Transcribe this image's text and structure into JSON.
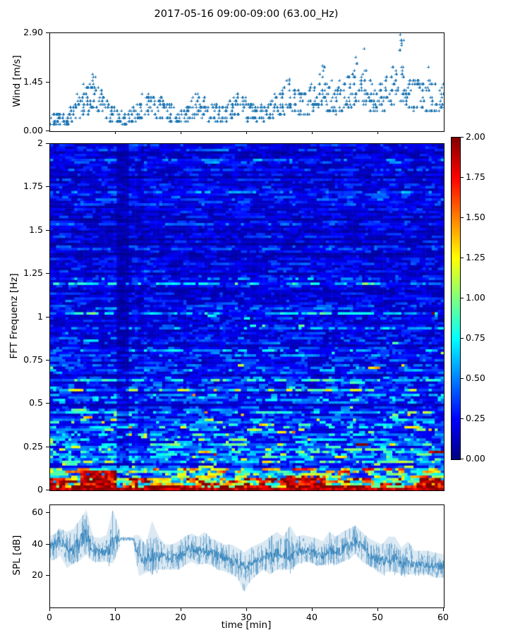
{
  "figure": {
    "title": "2017-05-16 09:00-09:00 (63.00_Hz)",
    "background": "#ffffff",
    "accent_blue": "#1f77b4"
  },
  "chart_data": [
    {
      "type": "scatter",
      "name": "wind-speed",
      "ylabel": "Wind [m/s]",
      "marker": "+",
      "color": "#1f77b4",
      "xlim": [
        0,
        60
      ],
      "ylim": [
        0,
        2.9
      ],
      "ytick_values": [
        0,
        1.45,
        2.9
      ],
      "ytick_labels": [
        "0.00",
        "1.45",
        "2.90"
      ],
      "xtick_values_unlabeled": [
        10,
        20,
        30,
        40,
        50
      ],
      "grid": false,
      "points_per_minute": 14,
      "quantize_step_ms": 0.1,
      "envelope_per_min": [
        [
          0.2,
          0.55
        ],
        [
          0.2,
          0.5
        ],
        [
          0.15,
          0.6
        ],
        [
          0.25,
          0.8
        ],
        [
          0.35,
          1.1
        ],
        [
          0.5,
          1.5
        ],
        [
          0.7,
          1.7
        ],
        [
          0.55,
          1.3
        ],
        [
          0.4,
          1.0
        ],
        [
          0.3,
          0.7
        ],
        [
          0.25,
          0.6
        ],
        [
          0.2,
          0.5
        ],
        [
          0.3,
          0.7
        ],
        [
          0.35,
          0.9
        ],
        [
          0.45,
          1.1
        ],
        [
          0.45,
          1.15
        ],
        [
          0.4,
          1.0
        ],
        [
          0.35,
          0.9
        ],
        [
          0.3,
          0.8
        ],
        [
          0.25,
          0.6
        ],
        [
          0.3,
          0.7
        ],
        [
          0.35,
          1.0
        ],
        [
          0.45,
          1.15
        ],
        [
          0.4,
          1.0
        ],
        [
          0.3,
          0.8
        ],
        [
          0.3,
          0.8
        ],
        [
          0.3,
          0.75
        ],
        [
          0.35,
          0.9
        ],
        [
          0.45,
          1.1
        ],
        [
          0.35,
          1.0
        ],
        [
          0.3,
          0.8
        ],
        [
          0.3,
          0.7
        ],
        [
          0.3,
          0.8
        ],
        [
          0.35,
          0.9
        ],
        [
          0.45,
          1.1
        ],
        [
          0.5,
          1.3
        ],
        [
          0.6,
          1.55
        ],
        [
          0.5,
          1.3
        ],
        [
          0.45,
          1.2
        ],
        [
          0.5,
          1.4
        ],
        [
          0.6,
          1.5
        ],
        [
          0.7,
          1.95
        ],
        [
          0.6,
          1.5
        ],
        [
          0.5,
          1.3
        ],
        [
          0.6,
          1.5
        ],
        [
          0.7,
          1.7
        ],
        [
          0.8,
          2.2
        ],
        [
          0.7,
          1.8
        ],
        [
          0.6,
          1.5
        ],
        [
          0.55,
          1.3
        ],
        [
          0.6,
          1.6
        ],
        [
          0.7,
          1.7
        ],
        [
          0.8,
          2.0
        ],
        [
          0.9,
          2.85
        ],
        [
          0.7,
          1.7
        ],
        [
          0.6,
          1.5
        ],
        [
          0.7,
          1.6
        ],
        [
          0.6,
          1.5
        ],
        [
          0.55,
          1.4
        ],
        [
          0.6,
          1.5
        ]
      ],
      "peaks": [
        {
          "t": 6.4,
          "v": 1.7
        },
        {
          "t": 6.55,
          "v": 1.6
        },
        {
          "t": 36.4,
          "v": 1.55
        },
        {
          "t": 41.5,
          "v": 1.95
        },
        {
          "t": 46.6,
          "v": 2.2
        },
        {
          "t": 47.9,
          "v": 2.45
        },
        {
          "t": 53.3,
          "v": 2.85
        },
        {
          "t": 53.4,
          "v": 2.7
        },
        {
          "t": 53.5,
          "v": 2.55
        },
        {
          "t": 57.6,
          "v": 1.9
        }
      ]
    },
    {
      "type": "heatmap",
      "name": "fft-spectrogram",
      "ylabel": "FFT Frequenz [Hz]",
      "colormap": "jet",
      "xlim": [
        0,
        60
      ],
      "ylim": [
        0,
        2
      ],
      "clim": [
        0,
        2
      ],
      "ytick_values": [
        0,
        0.25,
        0.5,
        0.75,
        1,
        1.25,
        1.5,
        1.75,
        2
      ],
      "ytick_labels": [
        "0",
        "0.25",
        "0.5",
        "0.75",
        "1",
        "1.25",
        "1.5",
        "1.75",
        "2"
      ],
      "colorbar": {
        "tick_values": [
          0,
          0.25,
          0.5,
          0.75,
          1.0,
          1.25,
          1.5,
          1.75,
          2.0
        ],
        "tick_labels": [
          "0.00",
          "0.25",
          "0.50",
          "0.75",
          "1.00",
          "1.25",
          "1.50",
          "1.75",
          "2.00"
        ]
      },
      "freq_base_profile": [
        {
          "f": 0.0,
          "base": 1.9
        },
        {
          "f": 0.03,
          "base": 1.55
        },
        {
          "f": 0.06,
          "base": 1.05
        },
        {
          "f": 0.1,
          "base": 0.85
        },
        {
          "f": 0.15,
          "base": 0.62
        },
        {
          "f": 0.22,
          "base": 0.5
        },
        {
          "f": 0.3,
          "base": 0.42
        },
        {
          "f": 0.45,
          "base": 0.36
        },
        {
          "f": 0.6,
          "base": 0.3
        },
        {
          "f": 0.8,
          "base": 0.27
        },
        {
          "f": 1.0,
          "base": 0.25
        },
        {
          "f": 1.3,
          "base": 0.23
        },
        {
          "f": 1.6,
          "base": 0.22
        },
        {
          "f": 2.0,
          "base": 0.21
        }
      ],
      "dark_time_bands": [
        {
          "t0": 10.2,
          "t1": 11.8,
          "factor": 0.52
        },
        {
          "t0": 13.2,
          "t1": 14.1,
          "factor": 0.78
        }
      ],
      "hot_blobs": [
        {
          "t0": 0,
          "t1": 2.5,
          "fmax": 0.07,
          "value": 1.9
        },
        {
          "t0": 4.5,
          "t1": 10.0,
          "fmax": 0.11,
          "value": 1.95
        },
        {
          "t0": 15,
          "t1": 27,
          "fmax": 0.035,
          "value": 1.9
        },
        {
          "t0": 29,
          "t1": 33,
          "fmax": 0.025,
          "value": 1.85
        },
        {
          "t0": 36,
          "t1": 42,
          "fmax": 0.08,
          "value": 1.92
        },
        {
          "t0": 44,
          "t1": 49,
          "fmax": 0.03,
          "value": 1.8
        },
        {
          "t0": 56,
          "t1": 60,
          "fmax": 0.055,
          "value": 1.85
        }
      ]
    },
    {
      "type": "line",
      "name": "spl",
      "ylabel": "SPL [dB]",
      "xlabel": "time [min]",
      "color": "#1f77b4",
      "xlim": [
        0,
        60
      ],
      "ylim": [
        0,
        65
      ],
      "ytick_values": [
        20,
        40,
        60
      ],
      "ytick_labels": [
        "20",
        "40",
        "60"
      ],
      "xtick_values": [
        0,
        10,
        20,
        30,
        40,
        50,
        60
      ],
      "xtick_labels": [
        "0",
        "10",
        "20",
        "30",
        "40",
        "50",
        "60"
      ],
      "flat_segment": {
        "t_start": 10.6,
        "t_end": 12.7,
        "value": 43.5,
        "halfwidth": 1.3
      },
      "envelope_per_min": [
        [
          30,
          46,
          39
        ],
        [
          33,
          50,
          43
        ],
        [
          25,
          48,
          38
        ],
        [
          28,
          50,
          37
        ],
        [
          30,
          56,
          42
        ],
        [
          34,
          62,
          46
        ],
        [
          29,
          45,
          36
        ],
        [
          29,
          44,
          35
        ],
        [
          29,
          46,
          36
        ],
        [
          28,
          62,
          40
        ],
        [
          38,
          50,
          44
        ],
        [
          41,
          46,
          43.5
        ],
        [
          41,
          46,
          43.5
        ],
        [
          20,
          46,
          32
        ],
        [
          22,
          40,
          31
        ],
        [
          24,
          55,
          33
        ],
        [
          24,
          45,
          33
        ],
        [
          24,
          40,
          32
        ],
        [
          24,
          40,
          31
        ],
        [
          24,
          42,
          32
        ],
        [
          27,
          45,
          35
        ],
        [
          29,
          47,
          38
        ],
        [
          27,
          45,
          36
        ],
        [
          28,
          48,
          37
        ],
        [
          27,
          44,
          35
        ],
        [
          24,
          42,
          33
        ],
        [
          23,
          40,
          31
        ],
        [
          21,
          40,
          30
        ],
        [
          19,
          38,
          28
        ],
        [
          10,
          35,
          26
        ],
        [
          17,
          38,
          28
        ],
        [
          21,
          40,
          30
        ],
        [
          24,
          42,
          32
        ],
        [
          21,
          45,
          32
        ],
        [
          24,
          48,
          34
        ],
        [
          24,
          45,
          34
        ],
        [
          24,
          52,
          34
        ],
        [
          27,
          45,
          35
        ],
        [
          29,
          46,
          36
        ],
        [
          29,
          45,
          36
        ],
        [
          27,
          44,
          34
        ],
        [
          27,
          42,
          33
        ],
        [
          29,
          48,
          36
        ],
        [
          27,
          45,
          35
        ],
        [
          29,
          48,
          37
        ],
        [
          31,
          50,
          39
        ],
        [
          34,
          52,
          42
        ],
        [
          29,
          48,
          38
        ],
        [
          27,
          44,
          34
        ],
        [
          24,
          42,
          32
        ],
        [
          21,
          40,
          29
        ],
        [
          23,
          45,
          31
        ],
        [
          23,
          45,
          31
        ],
        [
          21,
          38,
          28
        ],
        [
          21,
          42,
          29
        ],
        [
          21,
          36,
          27
        ],
        [
          21,
          36,
          27
        ],
        [
          21,
          36,
          27
        ],
        [
          19,
          35,
          26
        ],
        [
          19,
          34,
          26
        ]
      ]
    }
  ]
}
